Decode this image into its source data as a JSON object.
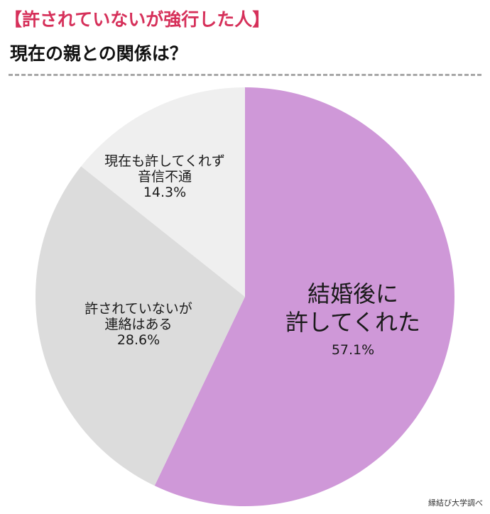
{
  "header": {
    "title": "【許されていないが強行した人】",
    "subtitle": "現在の親との関係は？"
  },
  "colors": {
    "title_accent": "#d6305a",
    "slice_1": "#cf98d8",
    "slice_2": "#dcdcdc",
    "slice_3": "#efefef",
    "divider": "#a7a7a7"
  },
  "chart_data": {
    "type": "pie",
    "title": "現在の親との関係は？",
    "legend": "none",
    "slices": [
      {
        "label_lines": [
          "結婚後に",
          "許してくれた"
        ],
        "value": 57.1,
        "value_label": "57.1%"
      },
      {
        "label_lines": [
          "許されていないが",
          "連絡はある"
        ],
        "value": 28.6,
        "value_label": "28.6%"
      },
      {
        "label_lines": [
          "現在も許してくれず",
          "音信不通"
        ],
        "value": 14.3,
        "value_label": "14.3%"
      }
    ]
  },
  "footer": {
    "source": "縁結び大学調べ"
  }
}
